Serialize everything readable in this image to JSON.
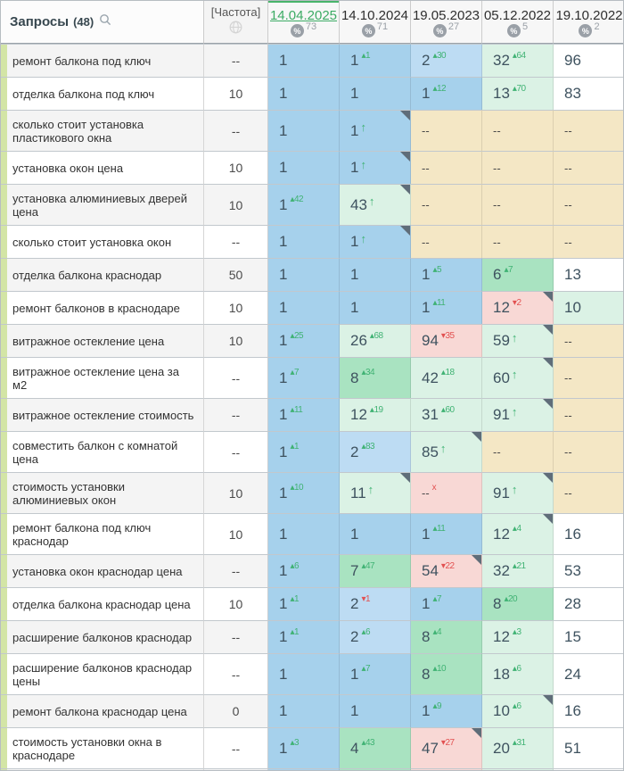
{
  "header": {
    "queries_label": "Запросы",
    "queries_count": "(48)",
    "frequency_label": "[Частота]",
    "percent_icon": "%",
    "dates": [
      {
        "label": "14.04.2025",
        "count": "73",
        "active": true
      },
      {
        "label": "14.10.2024",
        "count": "71",
        "active": false
      },
      {
        "label": "19.05.2023",
        "count": "27",
        "active": false
      },
      {
        "label": "05.12.2022",
        "count": "5",
        "active": false
      },
      {
        "label": "19.10.2022",
        "count": "2",
        "active": false
      }
    ]
  },
  "colors": {
    "pos_top1_blue": "#a6d1ec",
    "pos_top3_blue": "#bddcf3",
    "pos_top10_green": "#a9e3c1",
    "pos_top100_green": "#dbf2e5",
    "dropped_pink": "#f8d8d5",
    "not_found_tan": "#f4e7c5",
    "plain_white": "#ffffff",
    "left_strip_green": "#d3e5a6",
    "active_date_green": "#3cab64",
    "sup_up_green": "#3fb273",
    "sup_down_red": "#e25151"
  },
  "rows": [
    {
      "query": "ремонт балкона под ключ",
      "freq": "--",
      "tall": false,
      "cells": [
        {
          "v": "1",
          "bg": "b1"
        },
        {
          "v": "1",
          "sup": "▴1",
          "cls": "up",
          "bg": "b1"
        },
        {
          "v": "2",
          "sup": "▴30",
          "cls": "up",
          "bg": "b2"
        },
        {
          "v": "32",
          "sup": "▴64",
          "cls": "up",
          "bg": "lg"
        },
        {
          "v": "96",
          "bg": "wh"
        }
      ]
    },
    {
      "query": "отделка балкона под ключ",
      "freq": "10",
      "tall": false,
      "cells": [
        {
          "v": "1",
          "bg": "b1"
        },
        {
          "v": "1",
          "bg": "b1"
        },
        {
          "v": "1",
          "sup": "▴12",
          "cls": "up",
          "bg": "b1"
        },
        {
          "v": "13",
          "sup": "▴70",
          "cls": "up",
          "bg": "lg"
        },
        {
          "v": "83",
          "bg": "wh"
        }
      ]
    },
    {
      "query": "сколько стоит установка пластикового окна",
      "freq": "--",
      "tall": true,
      "cells": [
        {
          "v": "1",
          "bg": "b1"
        },
        {
          "v": "1",
          "sup": "↑",
          "cls": "arrow",
          "bg": "b1",
          "corner": true
        },
        {
          "v": "--",
          "bg": "tn"
        },
        {
          "v": "--",
          "bg": "tn"
        },
        {
          "v": "--",
          "bg": "tn"
        }
      ]
    },
    {
      "query": "установка окон цена",
      "freq": "10",
      "tall": false,
      "cells": [
        {
          "v": "1",
          "bg": "b1"
        },
        {
          "v": "1",
          "sup": "↑",
          "cls": "arrow",
          "bg": "b1",
          "corner": true
        },
        {
          "v": "--",
          "bg": "tn"
        },
        {
          "v": "--",
          "bg": "tn"
        },
        {
          "v": "--",
          "bg": "tn"
        }
      ]
    },
    {
      "query": "установка алюминиевых дверей цена",
      "freq": "10",
      "tall": true,
      "cells": [
        {
          "v": "1",
          "sup": "▴42",
          "cls": "up",
          "bg": "b1"
        },
        {
          "v": "43",
          "sup": "↑",
          "cls": "arrow",
          "bg": "lg",
          "corner": true
        },
        {
          "v": "--",
          "bg": "tn"
        },
        {
          "v": "--",
          "bg": "tn"
        },
        {
          "v": "--",
          "bg": "tn"
        }
      ]
    },
    {
      "query": "сколько стоит установка окон",
      "freq": "--",
      "tall": false,
      "cells": [
        {
          "v": "1",
          "bg": "b1"
        },
        {
          "v": "1",
          "sup": "↑",
          "cls": "arrow",
          "bg": "b1",
          "corner": true
        },
        {
          "v": "--",
          "bg": "tn"
        },
        {
          "v": "--",
          "bg": "tn"
        },
        {
          "v": "--",
          "bg": "tn"
        }
      ]
    },
    {
      "query": "отделка балкона краснодар",
      "freq": "50",
      "tall": false,
      "cells": [
        {
          "v": "1",
          "bg": "b1"
        },
        {
          "v": "1",
          "bg": "b1"
        },
        {
          "v": "1",
          "sup": "▴5",
          "cls": "up",
          "bg": "b1"
        },
        {
          "v": "6",
          "sup": "▴7",
          "cls": "up",
          "bg": "g"
        },
        {
          "v": "13",
          "bg": "wh"
        }
      ]
    },
    {
      "query": "ремонт балконов в краснодаре",
      "freq": "10",
      "tall": false,
      "cells": [
        {
          "v": "1",
          "bg": "b1"
        },
        {
          "v": "1",
          "bg": "b1"
        },
        {
          "v": "1",
          "sup": "▴11",
          "cls": "up",
          "bg": "b1"
        },
        {
          "v": "12",
          "sup": "▾2",
          "cls": "down",
          "bg": "pk",
          "corner": true
        },
        {
          "v": "10",
          "bg": "lg"
        }
      ]
    },
    {
      "query": "витражное остекление цена",
      "freq": "10",
      "tall": false,
      "cells": [
        {
          "v": "1",
          "sup": "▴25",
          "cls": "up",
          "bg": "b1"
        },
        {
          "v": "26",
          "sup": "▴68",
          "cls": "up",
          "bg": "lg"
        },
        {
          "v": "94",
          "sup": "▾35",
          "cls": "down",
          "bg": "pk"
        },
        {
          "v": "59",
          "sup": "↑",
          "cls": "arrow",
          "bg": "lg",
          "corner": true
        },
        {
          "v": "--",
          "bg": "tn"
        }
      ]
    },
    {
      "query": "витражное остекление цена за м2",
      "freq": "--",
      "tall": true,
      "cells": [
        {
          "v": "1",
          "sup": "▴7",
          "cls": "up",
          "bg": "b1"
        },
        {
          "v": "8",
          "sup": "▴34",
          "cls": "up",
          "bg": "g"
        },
        {
          "v": "42",
          "sup": "▴18",
          "cls": "up",
          "bg": "lg"
        },
        {
          "v": "60",
          "sup": "↑",
          "cls": "arrow",
          "bg": "lg",
          "corner": true
        },
        {
          "v": "--",
          "bg": "tn"
        }
      ]
    },
    {
      "query": "витражное остекление стоимость",
      "freq": "--",
      "tall": false,
      "cells": [
        {
          "v": "1",
          "sup": "▴11",
          "cls": "up",
          "bg": "b1"
        },
        {
          "v": "12",
          "sup": "▴19",
          "cls": "up",
          "bg": "lg"
        },
        {
          "v": "31",
          "sup": "▴60",
          "cls": "up",
          "bg": "lg"
        },
        {
          "v": "91",
          "sup": "↑",
          "cls": "arrow",
          "bg": "lg",
          "corner": true
        },
        {
          "v": "--",
          "bg": "tn"
        }
      ]
    },
    {
      "query": "совместить балкон с комнатой цена",
      "freq": "--",
      "tall": true,
      "cells": [
        {
          "v": "1",
          "sup": "▴1",
          "cls": "up",
          "bg": "b1"
        },
        {
          "v": "2",
          "sup": "▴83",
          "cls": "up",
          "bg": "b2"
        },
        {
          "v": "85",
          "sup": "↑",
          "cls": "arrow",
          "bg": "lg",
          "corner": true
        },
        {
          "v": "--",
          "bg": "tn"
        },
        {
          "v": "--",
          "bg": "tn"
        }
      ]
    },
    {
      "query": "стоимость установки алюминиевых окон",
      "freq": "10",
      "tall": true,
      "cells": [
        {
          "v": "1",
          "sup": "▴10",
          "cls": "up",
          "bg": "b1"
        },
        {
          "v": "11",
          "sup": "↑",
          "cls": "arrow",
          "bg": "lg",
          "corner": true
        },
        {
          "v": "--",
          "sup": "x",
          "cls": "x",
          "bg": "pk"
        },
        {
          "v": "91",
          "sup": "↑",
          "cls": "arrow",
          "bg": "lg",
          "corner": true
        },
        {
          "v": "--",
          "bg": "tn"
        }
      ]
    },
    {
      "query": "ремонт балкона под ключ краснодар",
      "freq": "10",
      "tall": true,
      "cells": [
        {
          "v": "1",
          "bg": "b1"
        },
        {
          "v": "1",
          "bg": "b1"
        },
        {
          "v": "1",
          "sup": "▴11",
          "cls": "up",
          "bg": "b1"
        },
        {
          "v": "12",
          "sup": "▴4",
          "cls": "up",
          "bg": "lg",
          "corner": true
        },
        {
          "v": "16",
          "bg": "wh"
        }
      ]
    },
    {
      "query": "установка окон краснодар цена",
      "freq": "--",
      "tall": false,
      "cells": [
        {
          "v": "1",
          "sup": "▴6",
          "cls": "up",
          "bg": "b1"
        },
        {
          "v": "7",
          "sup": "▴47",
          "cls": "up",
          "bg": "g"
        },
        {
          "v": "54",
          "sup": "▾22",
          "cls": "down",
          "bg": "pk",
          "corner": true
        },
        {
          "v": "32",
          "sup": "▴21",
          "cls": "up",
          "bg": "lg"
        },
        {
          "v": "53",
          "bg": "wh"
        }
      ]
    },
    {
      "query": "отделка балкона краснодар цена",
      "freq": "10",
      "tall": false,
      "cells": [
        {
          "v": "1",
          "sup": "▴1",
          "cls": "up",
          "bg": "b1"
        },
        {
          "v": "2",
          "sup": "▾1",
          "cls": "down",
          "bg": "b2"
        },
        {
          "v": "1",
          "sup": "▴7",
          "cls": "up",
          "bg": "b1"
        },
        {
          "v": "8",
          "sup": "▴20",
          "cls": "up",
          "bg": "g"
        },
        {
          "v": "28",
          "bg": "wh"
        }
      ]
    },
    {
      "query": "расширение балконов краснодар",
      "freq": "--",
      "tall": false,
      "cells": [
        {
          "v": "1",
          "sup": "▴1",
          "cls": "up",
          "bg": "b1"
        },
        {
          "v": "2",
          "sup": "▴6",
          "cls": "up",
          "bg": "b2"
        },
        {
          "v": "8",
          "sup": "▴4",
          "cls": "up",
          "bg": "g"
        },
        {
          "v": "12",
          "sup": "▴3",
          "cls": "up",
          "bg": "lg"
        },
        {
          "v": "15",
          "bg": "wh"
        }
      ]
    },
    {
      "query": "расширение балконов краснодар цены",
      "freq": "--",
      "tall": true,
      "cells": [
        {
          "v": "1",
          "bg": "b1"
        },
        {
          "v": "1",
          "sup": "▴7",
          "cls": "up",
          "bg": "b1"
        },
        {
          "v": "8",
          "sup": "▴10",
          "cls": "up",
          "bg": "g"
        },
        {
          "v": "18",
          "sup": "▴6",
          "cls": "up",
          "bg": "lg"
        },
        {
          "v": "24",
          "bg": "wh"
        }
      ]
    },
    {
      "query": "ремонт балкона краснодар цена",
      "freq": "0",
      "tall": false,
      "cells": [
        {
          "v": "1",
          "bg": "b1"
        },
        {
          "v": "1",
          "bg": "b1"
        },
        {
          "v": "1",
          "sup": "▴9",
          "cls": "up",
          "bg": "b1"
        },
        {
          "v": "10",
          "sup": "▴6",
          "cls": "up",
          "bg": "lg",
          "corner": true
        },
        {
          "v": "16",
          "bg": "wh"
        }
      ]
    },
    {
      "query": "стоимость установки окна в краснодаре",
      "freq": "--",
      "tall": true,
      "cells": [
        {
          "v": "1",
          "sup": "▴3",
          "cls": "up",
          "bg": "b1"
        },
        {
          "v": "4",
          "sup": "▴43",
          "cls": "up",
          "bg": "g"
        },
        {
          "v": "47",
          "sup": "▾27",
          "cls": "down",
          "bg": "pk",
          "corner": true
        },
        {
          "v": "20",
          "sup": "▴31",
          "cls": "up",
          "bg": "lg"
        },
        {
          "v": "51",
          "bg": "wh"
        }
      ]
    }
  ],
  "partial_row": {
    "cells": [
      {
        "bg": "b1"
      },
      {
        "bg": "g"
      },
      {
        "bg": "pk"
      },
      {
        "bg": "lg"
      },
      {
        "bg": "wh"
      }
    ]
  }
}
